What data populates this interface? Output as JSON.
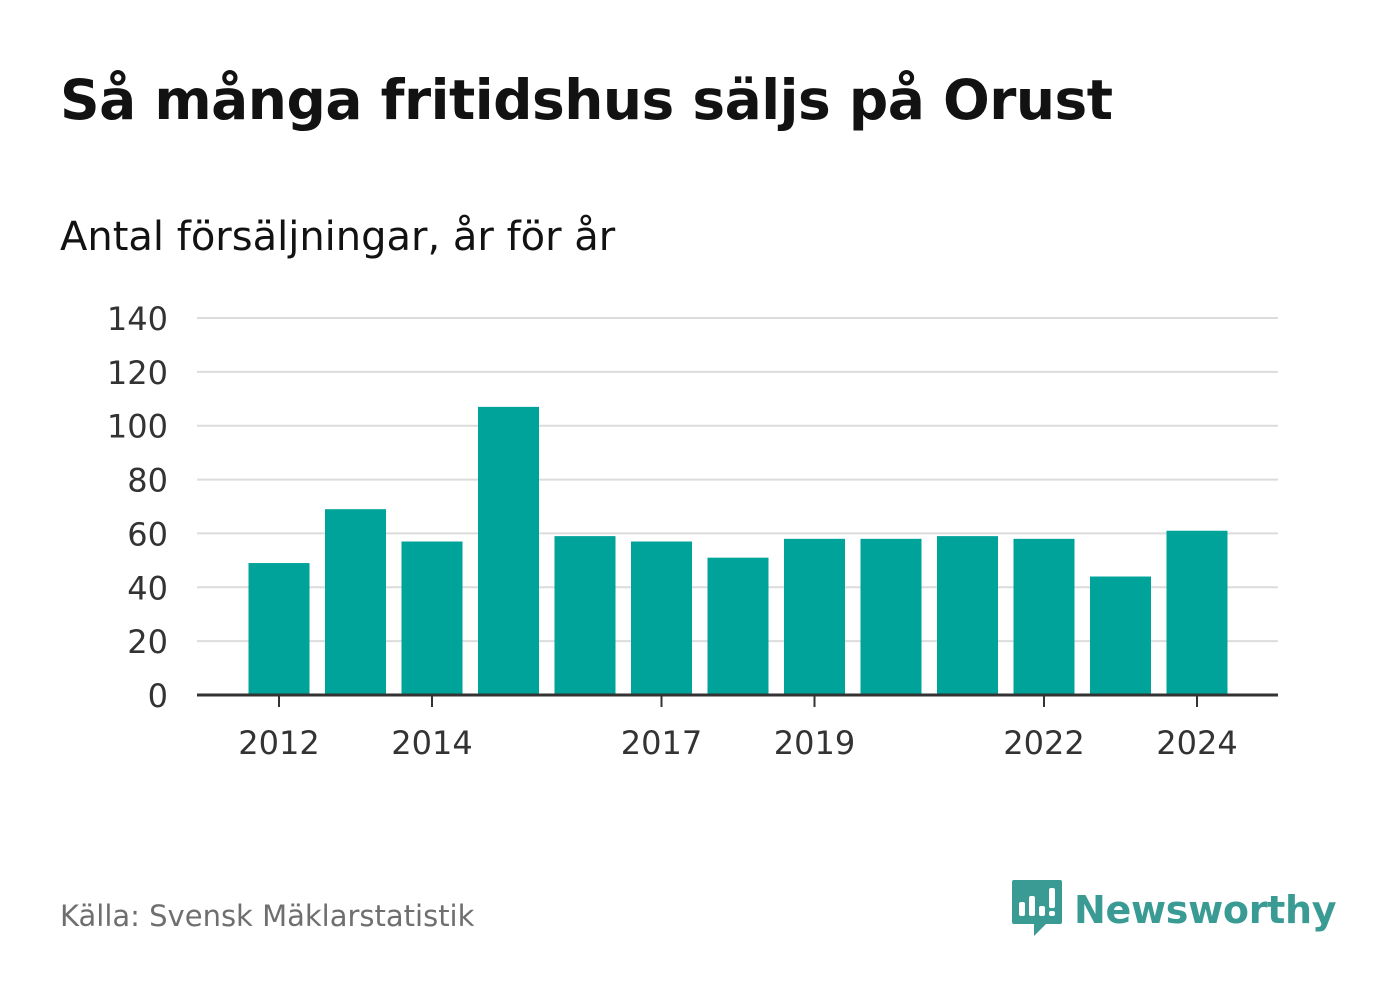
{
  "title": "Så många fritidshus säljs på Orust",
  "subtitle": "Antal försäljningar, år för år",
  "source": "Källa: Svensk Mäklarstatistik",
  "brand": {
    "name": "Newsworthy",
    "icon": "newsworthy-logo-icon",
    "color": "#3a9a94"
  },
  "colors": {
    "bar": "#00a39a",
    "grid": "#dcdcdc",
    "axis": "#333333",
    "tick_text": "#333333"
  },
  "chart_data": {
    "type": "bar",
    "categories": [
      "2012",
      "2013",
      "2014",
      "2015",
      "2016",
      "2017",
      "2018",
      "2019",
      "2020",
      "2021",
      "2022",
      "2023",
      "2024"
    ],
    "values": [
      49,
      69,
      57,
      107,
      59,
      57,
      51,
      58,
      58,
      59,
      58,
      44,
      61
    ],
    "x_tick_labels": [
      "2012",
      "",
      "2014",
      "",
      "",
      "2017",
      "",
      "2019",
      "",
      "",
      "2022",
      "",
      "2024"
    ],
    "y_ticks": [
      0,
      20,
      40,
      60,
      80,
      100,
      120,
      140
    ],
    "ylim": [
      0,
      140
    ],
    "grid": true,
    "xlabel": "",
    "ylabel": ""
  }
}
